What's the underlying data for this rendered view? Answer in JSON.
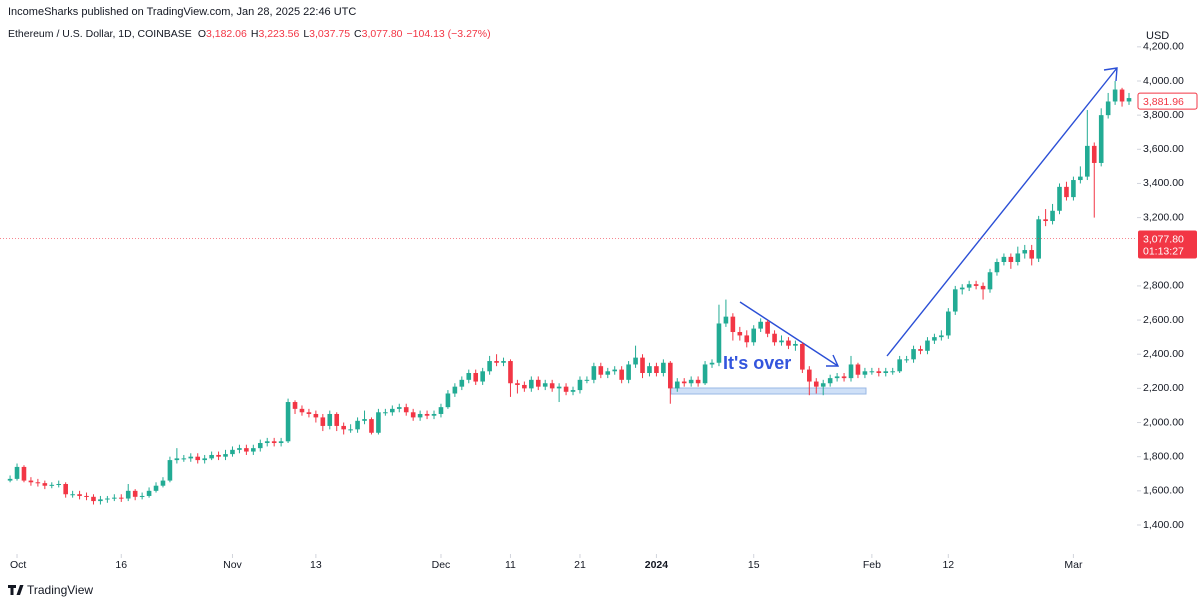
{
  "header": {
    "published": "IncomeSharks published on TradingView.com, Jan 28, 2025 22:46 UTC",
    "symbol": "Ethereum / U.S. Dollar, 1D, COINBASE",
    "ohlc": [
      {
        "key": "O",
        "value": "3,182.06"
      },
      {
        "key": "H",
        "value": "3,223.56"
      },
      {
        "key": "L",
        "value": "3,037.75"
      },
      {
        "key": "C",
        "value": "3,077.80"
      }
    ],
    "change": "−104.13 (−3.27%)"
  },
  "footer": {
    "brand": "TradingView"
  },
  "chart_data": {
    "type": "candlestick",
    "currency": "USD",
    "up_color": "#22ab94",
    "down_color": "#f23645",
    "annotation": "It's over",
    "open": [
      1660,
      1670,
      1740,
      1660,
      1650,
      1645,
      1630,
      1635,
      1640,
      1580,
      1580,
      1570,
      1565,
      1540,
      1550,
      1555,
      1560,
      1555,
      1600,
      1565,
      1570,
      1600,
      1630,
      1660,
      1780,
      1790,
      1790,
      1800,
      1780,
      1790,
      1810,
      1800,
      1815,
      1840,
      1850,
      1830,
      1850,
      1880,
      1890,
      1880,
      1890,
      2120,
      2080,
      2060,
      2050,
      2030,
      1980,
      2050,
      1980,
      1960,
      1960,
      2010,
      2020,
      1940,
      2060,
      2060,
      2080,
      2090,
      2060,
      2030,
      2050,
      2040,
      2050,
      2090,
      2170,
      2210,
      2250,
      2290,
      2240,
      2300,
      2360,
      2350,
      2360,
      2230,
      2220,
      2200,
      2250,
      2210,
      2230,
      2200,
      2210,
      2180,
      2190,
      2250,
      2250,
      2330,
      2280,
      2300,
      2310,
      2250,
      2340,
      2380,
      2290,
      2330,
      2290,
      2350,
      2200,
      2240,
      2230,
      2250,
      2230,
      2340,
      2350,
      2580,
      2620,
      2530,
      2510,
      2470,
      2550,
      2590,
      2520,
      2470,
      2480,
      2450,
      2460,
      2310,
      2240,
      2210,
      2230,
      2260,
      2270,
      2260,
      2340,
      2280,
      2300,
      2300,
      2290,
      2300,
      2300,
      2370,
      2370,
      2430,
      2420,
      2480,
      2500,
      2510,
      2650,
      2780,
      2790,
      2810,
      2800,
      2780,
      2880,
      2940,
      2970,
      2940,
      2990,
      3010,
      2960,
      3190,
      3180,
      3240,
      3380,
      3320,
      3420,
      3440,
      3620,
      3520,
      3800,
      3880,
      3950,
      3880
    ],
    "high": [
      1690,
      1760,
      1750,
      1680,
      1670,
      1660,
      1650,
      1660,
      1650,
      1600,
      1600,
      1590,
      1580,
      1570,
      1570,
      1580,
      1580,
      1640,
      1610,
      1590,
      1620,
      1650,
      1680,
      1800,
      1850,
      1810,
      1820,
      1820,
      1810,
      1830,
      1830,
      1840,
      1860,
      1870,
      1870,
      1870,
      1900,
      1910,
      1910,
      1910,
      2140,
      2130,
      2100,
      2080,
      2070,
      2050,
      2070,
      2060,
      2000,
      1990,
      2030,
      2070,
      2030,
      2080,
      2080,
      2100,
      2110,
      2110,
      2080,
      2070,
      2070,
      2070,
      2110,
      2190,
      2230,
      2270,
      2310,
      2310,
      2320,
      2390,
      2400,
      2380,
      2370,
      2250,
      2240,
      2270,
      2270,
      2250,
      2250,
      2230,
      2230,
      2210,
      2270,
      2270,
      2350,
      2350,
      2320,
      2330,
      2330,
      2360,
      2450,
      2400,
      2350,
      2350,
      2370,
      2360,
      2260,
      2260,
      2270,
      2270,
      2360,
      2370,
      2690,
      2720,
      2640,
      2560,
      2540,
      2570,
      2610,
      2600,
      2540,
      2510,
      2500,
      2480,
      2470,
      2330,
      2260,
      2250,
      2280,
      2290,
      2290,
      2390,
      2350,
      2320,
      2320,
      2320,
      2320,
      2320,
      2390,
      2390,
      2450,
      2450,
      2500,
      2520,
      2540,
      2670,
      2800,
      2810,
      2830,
      2830,
      2820,
      2900,
      2960,
      2990,
      2990,
      3030,
      3040,
      3040,
      3210,
      3250,
      3280,
      3400,
      3410,
      3440,
      3500,
      3830,
      3640,
      3840,
      3930,
      4000,
      3960,
      3930
    ],
    "low": [
      1650,
      1660,
      1650,
      1630,
      1625,
      1610,
      1615,
      1620,
      1560,
      1560,
      1550,
      1545,
      1520,
      1520,
      1530,
      1540,
      1535,
      1540,
      1545,
      1550,
      1560,
      1590,
      1620,
      1650,
      1760,
      1770,
      1770,
      1760,
      1760,
      1780,
      1780,
      1780,
      1800,
      1820,
      1810,
      1810,
      1830,
      1860,
      1860,
      1860,
      1880,
      2050,
      2040,
      2030,
      2000,
      1950,
      1960,
      1950,
      1930,
      1940,
      1940,
      1990,
      1930,
      1930,
      2040,
      2040,
      2060,
      2040,
      2010,
      2010,
      2020,
      2020,
      2030,
      2080,
      2150,
      2190,
      2230,
      2220,
      2220,
      2280,
      2330,
      2330,
      2150,
      2170,
      2180,
      2180,
      2190,
      2190,
      2180,
      2120,
      2160,
      2160,
      2170,
      2230,
      2230,
      2260,
      2260,
      2280,
      2230,
      2230,
      2320,
      2260,
      2270,
      2270,
      2270,
      2110,
      2180,
      2210,
      2210,
      2210,
      2220,
      2320,
      2330,
      2560,
      2480,
      2480,
      2440,
      2450,
      2530,
      2500,
      2450,
      2450,
      2430,
      2420,
      2290,
      2160,
      2170,
      2160,
      2210,
      2240,
      2240,
      2240,
      2260,
      2260,
      2280,
      2270,
      2270,
      2280,
      2290,
      2350,
      2350,
      2400,
      2400,
      2460,
      2480,
      2490,
      2630,
      2750,
      2770,
      2780,
      2720,
      2760,
      2860,
      2920,
      2900,
      2920,
      2960,
      2920,
      2940,
      3150,
      3160,
      3220,
      3300,
      3300,
      3400,
      3420,
      3200,
      3500,
      3780,
      3860,
      3850,
      3860
    ],
    "close": [
      1670,
      1740,
      1660,
      1650,
      1645,
      1630,
      1635,
      1640,
      1580,
      1580,
      1570,
      1565,
      1540,
      1550,
      1555,
      1560,
      1555,
      1600,
      1565,
      1570,
      1600,
      1630,
      1660,
      1780,
      1790,
      1790,
      1800,
      1780,
      1790,
      1810,
      1800,
      1815,
      1840,
      1850,
      1830,
      1850,
      1880,
      1890,
      1880,
      1890,
      2120,
      2080,
      2060,
      2050,
      2030,
      1980,
      2050,
      1980,
      1960,
      1960,
      2010,
      2020,
      1940,
      2060,
      2060,
      2080,
      2090,
      2060,
      2030,
      2050,
      2040,
      2050,
      2090,
      2170,
      2210,
      2250,
      2290,
      2240,
      2300,
      2360,
      2350,
      2360,
      2230,
      2220,
      2200,
      2250,
      2210,
      2230,
      2200,
      2210,
      2180,
      2190,
      2250,
      2250,
      2330,
      2280,
      2300,
      2310,
      2250,
      2340,
      2380,
      2290,
      2330,
      2290,
      2350,
      2200,
      2240,
      2230,
      2250,
      2230,
      2340,
      2350,
      2580,
      2620,
      2530,
      2510,
      2470,
      2550,
      2590,
      2520,
      2470,
      2480,
      2450,
      2460,
      2310,
      2240,
      2210,
      2230,
      2260,
      2270,
      2260,
      2340,
      2280,
      2300,
      2300,
      2290,
      2300,
      2300,
      2370,
      2370,
      2430,
      2420,
      2480,
      2500,
      2510,
      2650,
      2780,
      2790,
      2810,
      2800,
      2780,
      2880,
      2940,
      2970,
      2940,
      2990,
      3010,
      2960,
      3190,
      3180,
      3240,
      3380,
      3320,
      3420,
      3440,
      3620,
      3520,
      3800,
      3880,
      3950,
      3880,
      3900
    ],
    "xlim": [
      -1.45,
      162.15
    ],
    "xticks": [
      {
        "value": 1,
        "label": "Oct"
      },
      {
        "value": 16,
        "label": "16"
      },
      {
        "value": 32,
        "label": "Nov"
      },
      {
        "value": 44,
        "label": "13"
      },
      {
        "value": 62,
        "label": "Dec"
      },
      {
        "value": 72,
        "label": "11"
      },
      {
        "value": 82,
        "label": "21"
      },
      {
        "value": 93,
        "label": "2024"
      },
      {
        "value": 107,
        "label": "15"
      },
      {
        "value": 124,
        "label": "Feb"
      },
      {
        "value": 135,
        "label": "12"
      },
      {
        "value": 153,
        "label": "Mar"
      }
    ],
    "ylim": [
      1253.5,
      4298.6
    ],
    "yticks": [
      {
        "value": 1400,
        "label": "1,400.00"
      },
      {
        "value": 1600,
        "label": "1,600.00"
      },
      {
        "value": 1800,
        "label": "1,800.00"
      },
      {
        "value": 2000,
        "label": "2,000.00"
      },
      {
        "value": 2200,
        "label": "2,200.00"
      },
      {
        "value": 2400,
        "label": "2,400.00"
      },
      {
        "value": 2600,
        "label": "2,600.00"
      },
      {
        "value": 2800,
        "label": "2,800.00"
      },
      {
        "value": 3200,
        "label": "3,200.00"
      },
      {
        "value": 3400,
        "label": "3,400.00"
      },
      {
        "value": 3600,
        "label": "3,600.00"
      },
      {
        "value": 3800,
        "label": "3,800.00"
      },
      {
        "value": 4000,
        "label": "4,000.00"
      },
      {
        "value": 4200,
        "label": "4,200.00"
      }
    ],
    "grid": false,
    "marker_price": {
      "value": 3881.96,
      "label": "3,881.96"
    },
    "last_price": {
      "value": 3077.8,
      "label": "3,077.80",
      "countdown": "01:13:27"
    }
  }
}
